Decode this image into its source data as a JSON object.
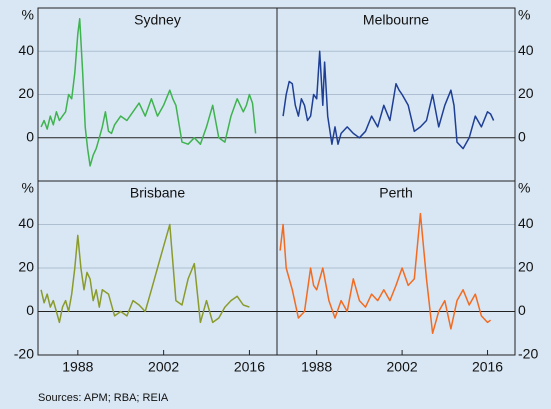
{
  "chart_data": [
    {
      "type": "line",
      "title": "Sydney",
      "y_unit": "%",
      "color": "#3fb34f",
      "xlim": [
        1981.5,
        2020.5
      ],
      "ylim": [
        -20,
        60
      ],
      "yticks": [
        0,
        20,
        40
      ],
      "grid": true,
      "x": [
        1982,
        1982.5,
        1983,
        1983.5,
        1984,
        1984.5,
        1985,
        1985.5,
        1986,
        1986.5,
        1987,
        1987.5,
        1988,
        1988.3,
        1988.8,
        1989.2,
        1989.6,
        1990,
        1990.5,
        1991,
        1991.5,
        1992,
        1992.5,
        1993,
        1993.5,
        1994,
        1995,
        1996,
        1997,
        1998,
        1999,
        2000,
        2001,
        2002,
        2003,
        2003.5,
        2004,
        2005,
        2006,
        2007,
        2008,
        2009,
        2009.5,
        2010,
        2011,
        2012,
        2013,
        2014,
        2015,
        2015.5,
        2016,
        2016.5,
        2017
      ],
      "values": [
        5,
        8,
        4,
        10,
        6,
        12,
        8,
        10,
        12,
        20,
        18,
        30,
        48,
        55,
        30,
        5,
        -5,
        -13,
        -8,
        -5,
        0,
        5,
        12,
        3,
        2,
        6,
        10,
        8,
        12,
        16,
        10,
        18,
        10,
        15,
        22,
        18,
        15,
        -2,
        -3,
        0,
        -3,
        5,
        10,
        15,
        0,
        -2,
        10,
        18,
        12,
        15,
        20,
        16,
        2
      ]
    },
    {
      "type": "line",
      "title": "Melbourne",
      "y_unit": "%",
      "color": "#1f3f95",
      "xlim": [
        1981.5,
        2020.5
      ],
      "ylim": [
        -20,
        60
      ],
      "yticks": [
        0,
        20,
        40
      ],
      "grid": true,
      "x": [
        1982.5,
        1983,
        1983.5,
        1984,
        1984.5,
        1985,
        1985.5,
        1986,
        1986.5,
        1987,
        1987.5,
        1988,
        1988.5,
        1989,
        1989.3,
        1989.8,
        1990.5,
        1991,
        1991.5,
        1992,
        1993,
        1994,
        1995,
        1996,
        1997,
        1998,
        1999,
        2000,
        2001,
        2001.5,
        2002,
        2003,
        2004,
        2005,
        2006,
        2007,
        2008,
        2009,
        2010,
        2010.5,
        2011,
        2012,
        2013,
        2014,
        2015,
        2016,
        2016.5,
        2017
      ],
      "values": [
        10,
        20,
        26,
        25,
        15,
        10,
        18,
        15,
        8,
        10,
        20,
        18,
        40,
        15,
        35,
        10,
        -3,
        5,
        -3,
        2,
        5,
        2,
        0,
        3,
        10,
        5,
        15,
        8,
        25,
        22,
        20,
        15,
        3,
        5,
        8,
        20,
        5,
        15,
        22,
        15,
        -2,
        -5,
        0,
        10,
        5,
        12,
        11,
        8
      ]
    },
    {
      "type": "line",
      "title": "Brisbane",
      "y_unit": "%",
      "color": "#8a9b2c",
      "xlim": [
        1981.5,
        2020.5
      ],
      "ylim": [
        -20,
        60
      ],
      "yticks": [
        -20,
        0,
        20,
        40
      ],
      "grid": true,
      "xticks": [
        1988,
        2002,
        2016
      ],
      "x": [
        1982,
        1982.5,
        1983,
        1983.5,
        1984,
        1984.5,
        1985,
        1985.5,
        1986,
        1986.5,
        1987,
        1987.5,
        1988,
        1988.5,
        1989,
        1989.5,
        1990,
        1990.5,
        1991,
        1991.5,
        1992,
        1993,
        1994,
        1995,
        1996,
        1997,
        1998,
        1999,
        2000,
        2001,
        2002,
        2002.5,
        2003,
        2004,
        2005,
        2006,
        2007,
        2008,
        2009,
        2010,
        2011,
        2012,
        2013,
        2014,
        2015,
        2016
      ],
      "values": [
        10,
        4,
        8,
        2,
        5,
        0,
        -5,
        2,
        5,
        0,
        8,
        20,
        35,
        20,
        10,
        18,
        15,
        5,
        10,
        2,
        10,
        8,
        -2,
        0,
        -2,
        5,
        3,
        0,
        10,
        20,
        30,
        35,
        40,
        5,
        3,
        15,
        22,
        -5,
        5,
        -5,
        -3,
        2,
        5,
        7,
        3,
        2
      ]
    },
    {
      "type": "line",
      "title": "Perth",
      "y_unit": "%",
      "color": "#f26b21",
      "xlim": [
        1981.5,
        2020.5
      ],
      "ylim": [
        -20,
        60
      ],
      "yticks": [
        -20,
        0,
        20,
        40
      ],
      "grid": true,
      "xticks": [
        1988,
        2002,
        2016
      ],
      "x": [
        1982,
        1982.5,
        1983,
        1984,
        1985,
        1986,
        1987,
        1987.5,
        1988,
        1989,
        1990,
        1991,
        1992,
        1993,
        1994,
        1995,
        1996,
        1997,
        1998,
        1999,
        2000,
        2001,
        2002,
        2003,
        2004,
        2005,
        2006,
        2007,
        2008,
        2009,
        2010,
        2011,
        2012,
        2013,
        2014,
        2015,
        2016,
        2016.5
      ],
      "values": [
        28,
        40,
        20,
        10,
        -3,
        0,
        20,
        12,
        10,
        20,
        5,
        -3,
        5,
        0,
        15,
        5,
        2,
        8,
        5,
        10,
        5,
        12,
        20,
        12,
        15,
        45,
        15,
        -10,
        0,
        5,
        -8,
        5,
        10,
        3,
        8,
        -2,
        -5,
        -4
      ]
    }
  ],
  "source": "Sources:   APM; RBA; REIA"
}
